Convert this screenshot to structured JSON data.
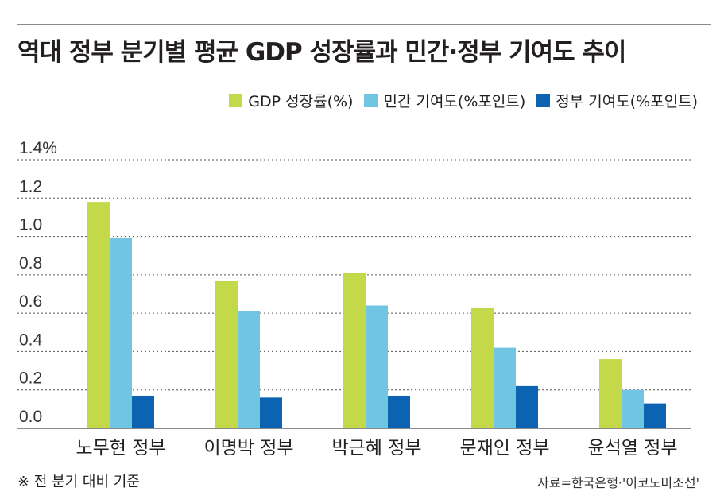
{
  "title": "역대 정부 분기별 평균 GDP 성장률과 민간·정부 기여도 추이",
  "note": "※ 전 분기 대비 기준",
  "source": "자료=한국은행·'이코노미조선'",
  "colors": {
    "gdp": "#c4d94a",
    "private": "#6fc5e2",
    "government": "#0b63b1"
  },
  "chart_data": {
    "type": "bar",
    "categories": [
      "노무현 정부",
      "이명박 정부",
      "박근혜 정부",
      "문재인 정부",
      "윤석열 정부"
    ],
    "series": [
      {
        "name": "GDP 성장률(%)",
        "values": [
          1.18,
          0.77,
          0.81,
          0.63,
          0.36
        ]
      },
      {
        "name": "민간 기여도(%포인트)",
        "values": [
          0.99,
          0.61,
          0.64,
          0.42,
          0.2
        ]
      },
      {
        "name": "정부 기여도(%포인트)",
        "values": [
          0.17,
          0.16,
          0.17,
          0.22,
          0.13
        ]
      }
    ],
    "ylim": [
      0,
      1.4
    ],
    "yticks": [
      "0.0",
      "0.2",
      "0.4",
      "0.6",
      "0.8",
      "1.0",
      "1.2",
      "1.4%"
    ],
    "grid": true,
    "legend": "top-right"
  }
}
